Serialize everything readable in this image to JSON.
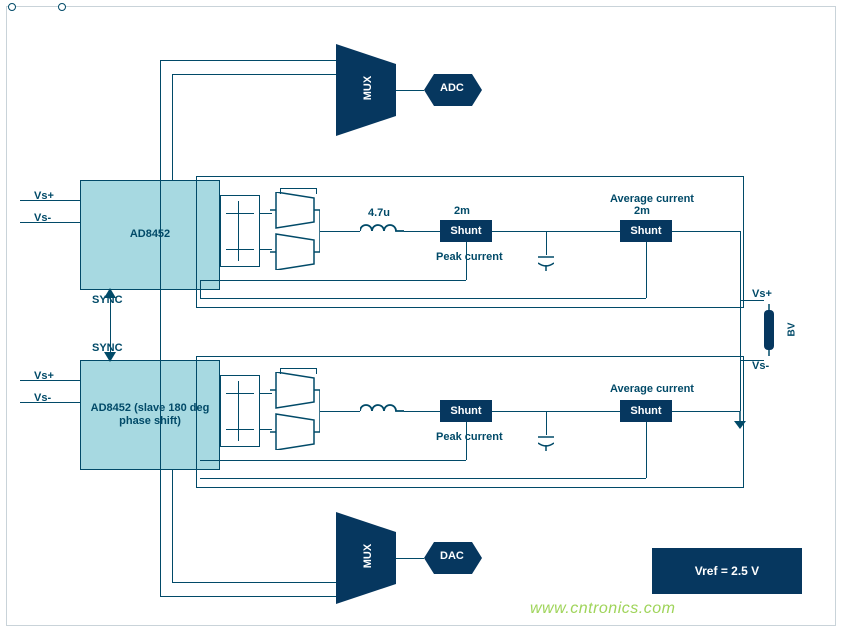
{
  "colors": {
    "wire": "#014a68",
    "ic_fill": "#a7d9e1",
    "ic_border": "#014a68",
    "dark_fill": "#06375f",
    "dark_text": "#ffffff",
    "label_text": "#014a68",
    "watermark": "#9fd45a",
    "bg": "#ffffff"
  },
  "fonts": {
    "label_size": 11,
    "label_weight": "700",
    "ic_size": 11,
    "small_size": 10
  },
  "ic": {
    "top": {
      "label": "AD8452"
    },
    "bottom": {
      "label": "AD8452 (slave 180 deg phase shift)"
    }
  },
  "labels": {
    "vs_plus": "Vs+",
    "vs_minus": "Vs-",
    "sync": "SYNC",
    "peak": "Peak current",
    "avg": "Average current",
    "ind": "4.7u",
    "shunt_val": "2m",
    "mux": "MUX",
    "adc": "ADC",
    "dac": "DAC",
    "shunt": "Shunt",
    "bv": "BV",
    "vref": "Vref = 2.5 V"
  },
  "watermark": "www.cntronics.com"
}
